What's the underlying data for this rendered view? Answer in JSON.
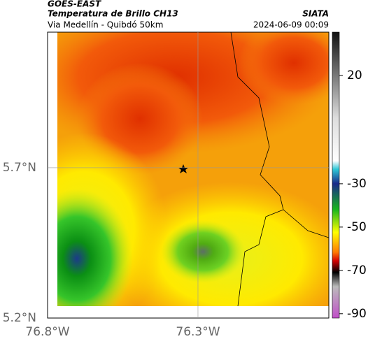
{
  "header": {
    "product": "GOES-EAST",
    "title": "Temperatura de Brillo CH13",
    "subtitle": "Via Medellín - Quibdó 50km",
    "source": "SIATA",
    "timestamp": "2024-06-09 00:09"
  },
  "map": {
    "xlim": [
      -76.8,
      -75.865
    ],
    "ylim": [
      5.2,
      6.151
    ],
    "xticks": [
      {
        "value": -76.8,
        "label": "76.8°W"
      },
      {
        "value": -76.3,
        "label": "76.3°W"
      }
    ],
    "yticks": [
      {
        "value": 5.2,
        "label": "5.2°N"
      },
      {
        "value": 5.7,
        "label": "5.7°N"
      }
    ],
    "grid": true
  },
  "colorbar": {
    "clim": [
      -92,
      40
    ],
    "ticks": [
      20,
      -30,
      -50,
      -70,
      -90
    ]
  }
}
